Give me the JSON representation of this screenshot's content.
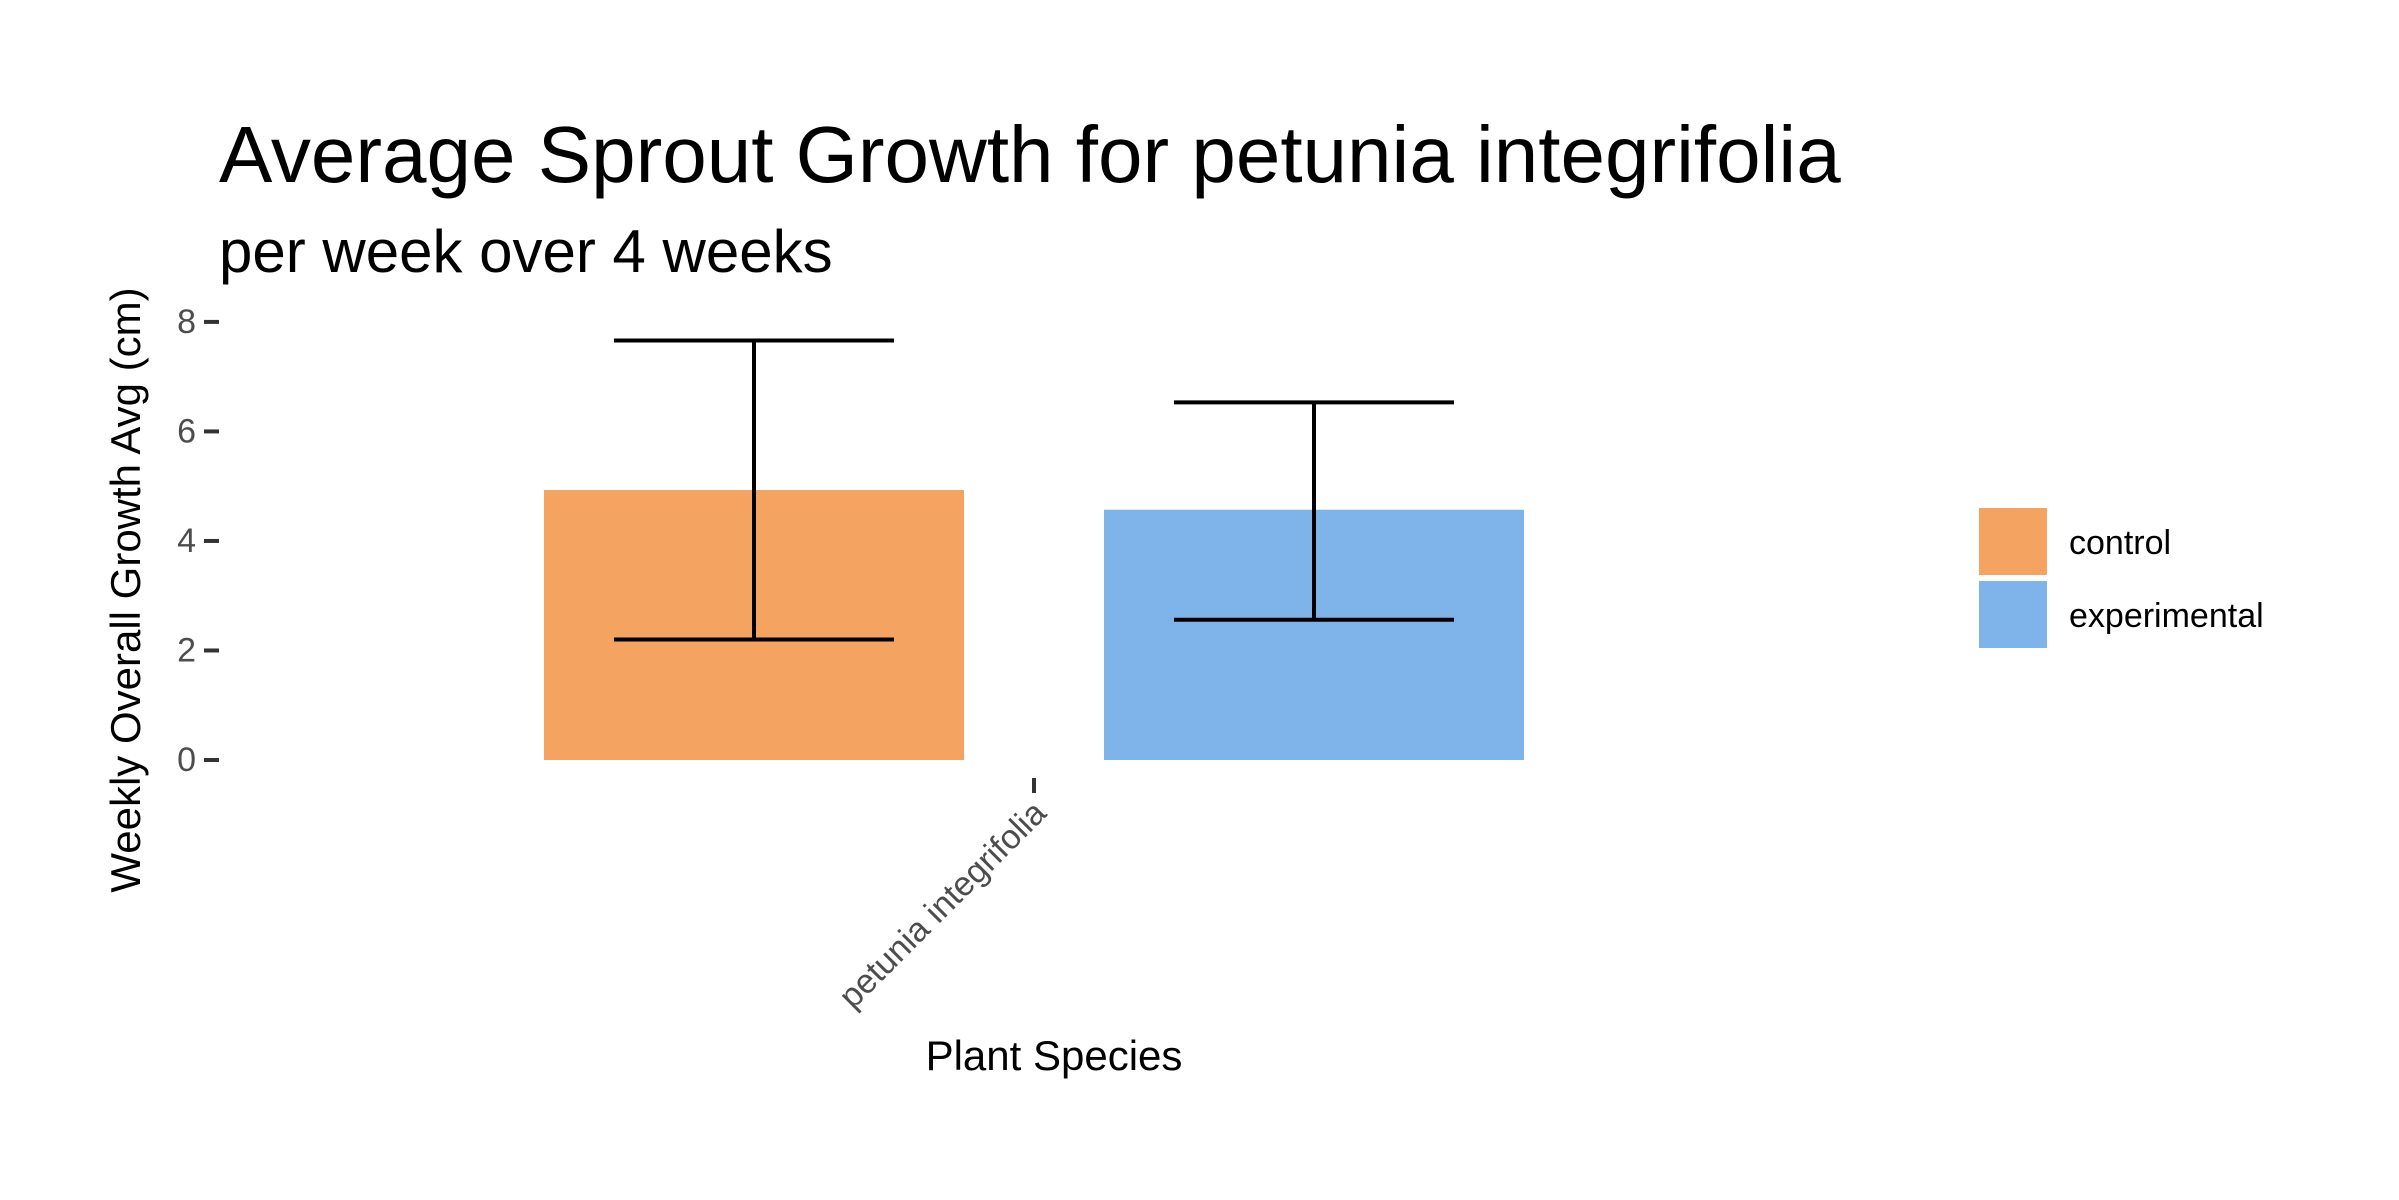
{
  "chart_data": {
    "type": "bar",
    "title": "Average Sprout Growth for petunia integrifolia",
    "subtitle": "per week over 4 weeks",
    "xlabel": "Plant Species",
    "ylabel": "Weekly Overall Growth Avg (cm)",
    "categories": [
      "petunia integrifolia"
    ],
    "ylim": [
      0,
      8.4
    ],
    "yticks": [
      0,
      2,
      4,
      6,
      8
    ],
    "grid": false,
    "legend_position": "right",
    "series": [
      {
        "name": "control",
        "color": "#F4A460",
        "values": [
          4.93
        ],
        "error_low": [
          2.2
        ],
        "error_high": [
          7.66
        ]
      },
      {
        "name": "experimental",
        "color": "#7EB4EA",
        "values": [
          4.57
        ],
        "error_low": [
          2.56
        ],
        "error_high": [
          6.53
        ]
      }
    ]
  }
}
